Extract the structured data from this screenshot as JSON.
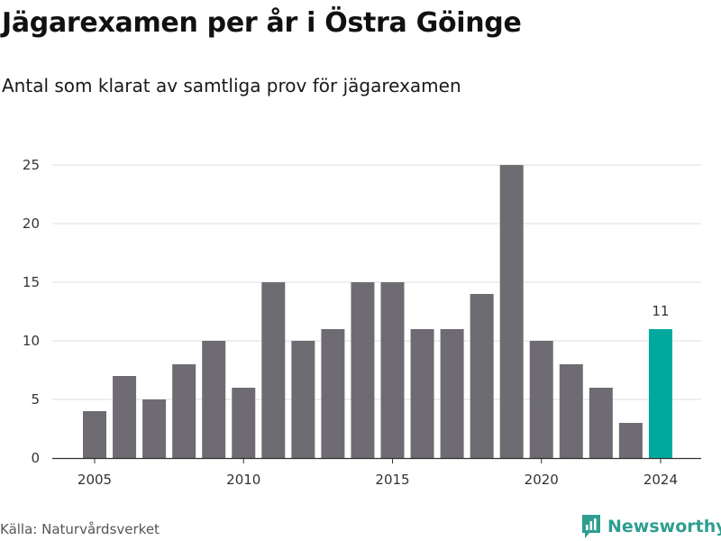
{
  "header": {
    "title": "Jägarexamen per år i Östra Göinge",
    "subtitle": "Antal som klarat av samtliga prov för jägarexamen"
  },
  "footer": {
    "source": "Källa: Naturvårdsverket",
    "brand": "Newsworthy",
    "brand_icon": "bar-chart-logo-icon",
    "brand_color": "#2e9e8f"
  },
  "chart_data": {
    "type": "bar",
    "title": "Jägarexamen per år i Östra Göinge",
    "subtitle": "Antal som klarat av samtliga prov för jägarexamen",
    "xlabel": "",
    "ylabel": "",
    "categories": [
      2005,
      2006,
      2007,
      2008,
      2009,
      2010,
      2011,
      2012,
      2013,
      2014,
      2015,
      2016,
      2017,
      2018,
      2019,
      2020,
      2021,
      2022,
      2023,
      2024
    ],
    "values": [
      4,
      7,
      5,
      8,
      10,
      6,
      15,
      10,
      11,
      15,
      15,
      11,
      11,
      14,
      25,
      10,
      8,
      6,
      3,
      11
    ],
    "x_ticks": [
      "2005",
      "2010",
      "2015",
      "2020",
      "2024"
    ],
    "y_ticks": [
      "0",
      "5",
      "10",
      "15",
      "20",
      "25"
    ],
    "ylim": [
      0,
      25
    ],
    "grid": "horizontal",
    "bar_color": "#6e6c72",
    "highlight_color": "#00a99d",
    "highlight_index": 19,
    "annotations": [
      {
        "category": 2024,
        "text": "11"
      }
    ]
  }
}
